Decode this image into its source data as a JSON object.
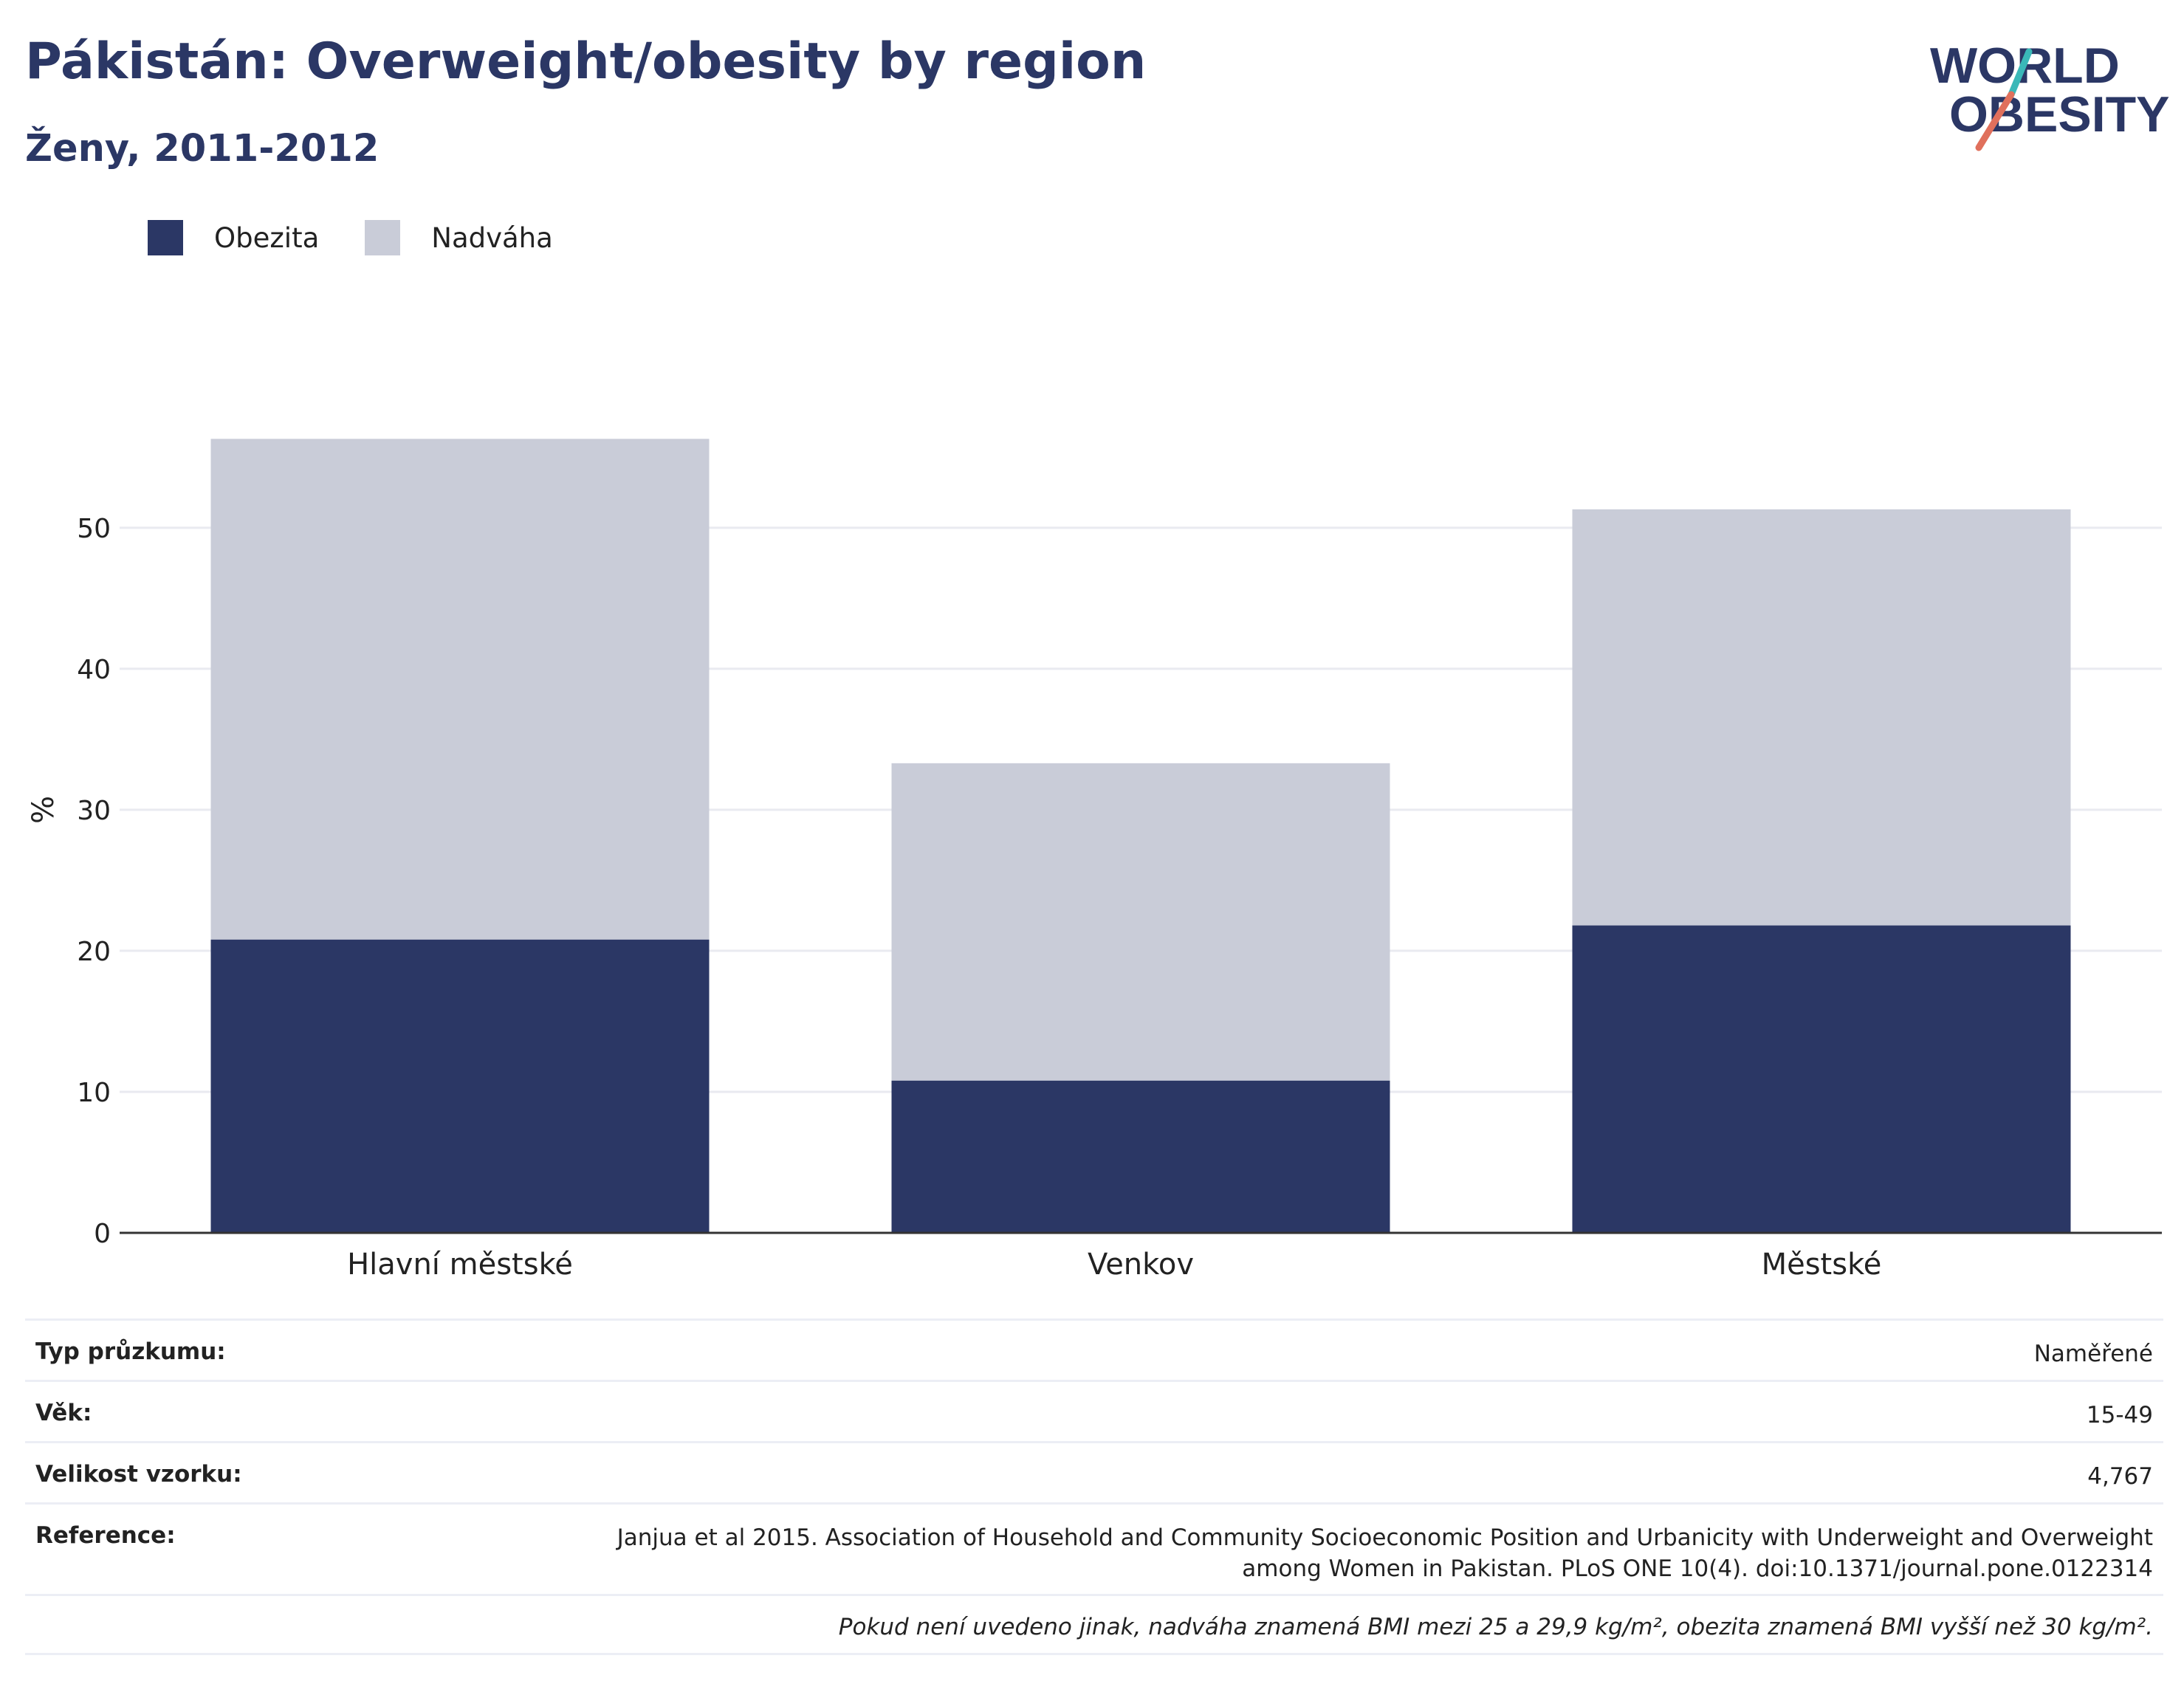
{
  "header": {
    "title": "Pákistán: Overweight/obesity by region",
    "subtitle": "Ženy, 2011-2012"
  },
  "logo": {
    "line1": "WORLD",
    "line2": "OBESITY",
    "accent_colors": [
      "#3ab8b8",
      "#e0705c"
    ]
  },
  "colors": {
    "obesity": "#2b3765",
    "overweight": "#c9ccd8",
    "grid": "#e9eaf0",
    "axis": "#333333"
  },
  "chart_data": {
    "type": "bar",
    "stacked": true,
    "categories": [
      "Hlavní městské",
      "Venkov",
      "Městské"
    ],
    "series": [
      {
        "name": "Obezita",
        "values": [
          20.8,
          10.8,
          21.8
        ]
      },
      {
        "name": "Nadváha",
        "values": [
          35.5,
          22.5,
          29.5
        ]
      }
    ],
    "ylabel": "%",
    "ylim": [
      0,
      58
    ],
    "yticks": [
      0,
      10,
      20,
      30,
      40,
      50
    ],
    "grid": true,
    "legend_position": "top-left"
  },
  "info": {
    "survey_type_label": "Typ průzkumu:",
    "survey_type_value": "Naměřené",
    "age_label": "Věk:",
    "age_value": "15-49",
    "sample_label": "Velikost vzorku:",
    "sample_value": "4,767",
    "reference_label": "Reference:",
    "reference_line1": "Janjua et al 2015. Association of Household and Community Socioeconomic Position and Urbanicity with Underweight and Overweight",
    "reference_line2": "among Women in Pakistan. PLoS ONE 10(4). doi:10.1371/journal.pone.0122314",
    "note": "Pokud není uvedeno jinak, nadváha znamená BMI mezi 25 a 29,9 kg/m², obezita znamená BMI vyšší než 30 kg/m²."
  }
}
